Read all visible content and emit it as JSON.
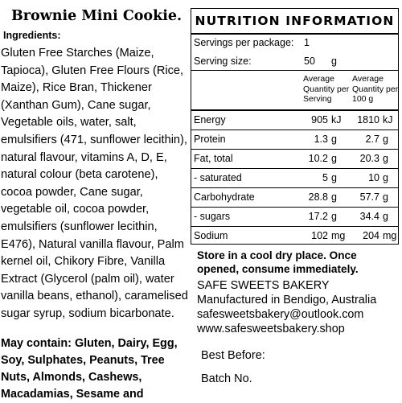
{
  "product": {
    "title": "Brownie Mini Cookie."
  },
  "ingredients": {
    "heading": "Ingredients:",
    "text": "Gluten Free Starches (Maize, Tapioca), Gluten Free Flours (Rice, Maize), Rice Bran, Thickener (Xanthan Gum), Cane sugar, Vegetable oils, water, salt, emulsifiers (471, sunflower lecithin), natural flavour, vitamins A, D, E, natural colour (beta carotene), cocoa powder, Cane sugar, vegetable oil, cocoa powder, emulsifiers (sunflower lecithin, E476), Natural vanilla flavour, Palm kernel oil, Chikory Fibre, Vanilla Extract (Glycerol (palm oil), water vanilla beans, ethanol), caramelised sugar syrup, sodium bicarbonate.",
    "may_contain": "May contain: Gluten, Dairy, Egg, Soy, Sulphates, Peanuts, Tree Nuts, Almonds, Cashews, Macadamias, Sesame and"
  },
  "nutrition": {
    "title": "NUTRITION INFORMATION",
    "servings_label": "Servings per package:",
    "servings_value": "1",
    "serving_size_label": "Serving size:",
    "serving_size_value": "50",
    "serving_size_unit": "g",
    "col_per_serving": "Average Quantity per Serving",
    "col_per_100g": "Average Quantity per 100 g",
    "rows": [
      {
        "name": "Energy",
        "serving": "905",
        "serving_unit": "kJ",
        "per100": "1810",
        "per100_unit": "kJ"
      },
      {
        "name": "Protein",
        "serving": "1.3",
        "serving_unit": "g",
        "per100": "2.7",
        "per100_unit": "g"
      },
      {
        "name": "Fat, total",
        "serving": "10.2",
        "serving_unit": "g",
        "per100": "20.3",
        "per100_unit": "g"
      },
      {
        "name": "- saturated",
        "serving": "5",
        "serving_unit": "g",
        "per100": "10",
        "per100_unit": "g"
      },
      {
        "name": "Carbohydrate",
        "serving": "28.8",
        "serving_unit": "g",
        "per100": "57.7",
        "per100_unit": "g"
      },
      {
        "name": "- sugars",
        "serving": "17.2",
        "serving_unit": "g",
        "per100": "34.4",
        "per100_unit": "g"
      },
      {
        "name": "Sodium",
        "serving": "102",
        "serving_unit": "mg",
        "per100": "204",
        "per100_unit": "mg"
      }
    ]
  },
  "storage": "Store in a cool dry place. Once opened, consume immediately.",
  "contact": {
    "company": "SAFE SWEETS BAKERY",
    "location": "Manufactured in Bendigo, Australia",
    "email": "safesweetsbakery@outlook.com",
    "website": "www.safesweetsbakery.shop"
  },
  "best_before_label": "Best Before:",
  "batch_label": "Batch No."
}
